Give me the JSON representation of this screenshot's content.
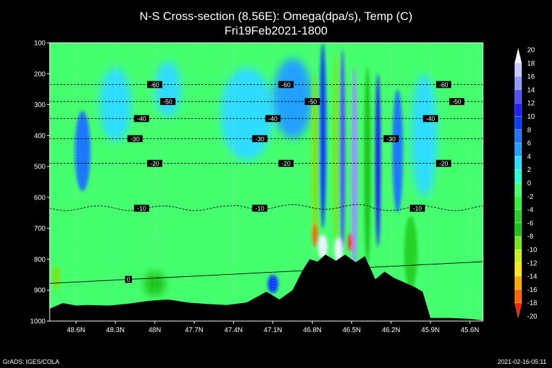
{
  "chart_data": {
    "type": "heatmap",
    "title": "N-S Cross-section (8.56E): Omega(dpa/s), Temp (C)",
    "subtitle": "Fri19Feb2021-1800",
    "xlabel": "",
    "ylabel": "",
    "x_ticks": [
      "48.6N",
      "48.3N",
      "48N",
      "47.7N",
      "47.4N",
      "47.1N",
      "46.8N",
      "46.5N",
      "46.2N",
      "45.9N",
      "45.6N"
    ],
    "x_tick_values": [
      48.6,
      48.3,
      48.0,
      47.7,
      47.4,
      47.1,
      46.8,
      46.5,
      46.2,
      45.9,
      45.6
    ],
    "xlim": [
      48.8,
      45.5
    ],
    "y_ticks": [
      "100",
      "200",
      "300",
      "400",
      "500",
      "600",
      "700",
      "800",
      "900",
      "1000"
    ],
    "y_tick_values": [
      100,
      200,
      300,
      400,
      500,
      600,
      700,
      800,
      900,
      1000
    ],
    "ylim": [
      100,
      1000
    ],
    "grid": true,
    "colorbar": {
      "levels": [
        "20",
        "18",
        "16",
        "14",
        "12",
        "10",
        "8",
        "6",
        "4",
        "2",
        "0",
        "-2",
        "-4",
        "-6",
        "-8",
        "-10",
        "-12",
        "-14",
        "-16",
        "-18",
        "-20"
      ],
      "colors": [
        "#f0f0ff",
        "#c8c8ff",
        "#9696ff",
        "#5050ff",
        "#1e1eff",
        "#0a3cff",
        "#1e78ff",
        "#23a0ff",
        "#2ddcff",
        "#28ffd2",
        "#46ff6e",
        "#32f03c",
        "#28d228",
        "#1ec31e",
        "#78e61e",
        "#c8f01e",
        "#ffe61e",
        "#ffaa00",
        "#ff6400",
        "#ff1e00"
      ]
    },
    "temperature_contours": [
      {
        "label": "-60",
        "p": 235,
        "label_lats": [
          48.0,
          47.0,
          45.8
        ]
      },
      {
        "label": "-50",
        "p": 290,
        "label_lats": [
          47.9,
          46.8,
          45.7
        ]
      },
      {
        "label": "-40",
        "p": 345,
        "label_lats": [
          48.1,
          47.1,
          45.9
        ]
      },
      {
        "label": "-30",
        "p": 410,
        "label_lats": [
          48.15,
          47.2,
          46.2
        ]
      },
      {
        "label": "-20",
        "p": 490,
        "label_lats": [
          48.0,
          47.0,
          45.8
        ]
      },
      {
        "label": "-10",
        "p": 635,
        "label_lats": [
          48.1,
          47.2,
          46.0
        ]
      },
      {
        "label": "0",
        "p": 860,
        "label_lats": [
          48.2
        ]
      }
    ],
    "omega_field": {
      "background": "#46ff6e",
      "blobs": [
        {
          "lat": 48.55,
          "p": 450,
          "dlat": 0.06,
          "dp": 130,
          "value": 6
        },
        {
          "lat": 48.3,
          "p": 300,
          "dlat": 0.12,
          "dp": 120,
          "value": 2
        },
        {
          "lat": 47.9,
          "p": 250,
          "dlat": 0.1,
          "dp": 90,
          "value": 2
        },
        {
          "lat": 47.3,
          "p": 330,
          "dlat": 0.2,
          "dp": 150,
          "value": 2
        },
        {
          "lat": 46.95,
          "p": 280,
          "dlat": 0.15,
          "dp": 130,
          "value": 4
        },
        {
          "lat": 46.78,
          "p": 480,
          "dlat": 0.03,
          "dp": 280,
          "value": -10
        },
        {
          "lat": 46.72,
          "p": 400,
          "dlat": 0.025,
          "dp": 300,
          "value": 8
        },
        {
          "lat": 46.62,
          "p": 450,
          "dlat": 0.025,
          "dp": 320,
          "value": -10
        },
        {
          "lat": 46.57,
          "p": 450,
          "dlat": 0.02,
          "dp": 330,
          "value": 12
        },
        {
          "lat": 46.48,
          "p": 520,
          "dlat": 0.025,
          "dp": 340,
          "value": 14
        },
        {
          "lat": 46.38,
          "p": 500,
          "dlat": 0.025,
          "dp": 320,
          "value": -8
        },
        {
          "lat": 46.3,
          "p": 480,
          "dlat": 0.02,
          "dp": 280,
          "value": 10
        },
        {
          "lat": 46.15,
          "p": 450,
          "dlat": 0.04,
          "dp": 200,
          "value": 6
        },
        {
          "lat": 45.95,
          "p": 400,
          "dlat": 0.1,
          "dp": 200,
          "value": 2
        },
        {
          "lat": 46.78,
          "p": 720,
          "dlat": 0.02,
          "dp": 40,
          "value": -18
        },
        {
          "lat": 46.51,
          "p": 745,
          "dlat": 0.015,
          "dp": 30,
          "value": -20
        },
        {
          "lat": 46.72,
          "p": 760,
          "dlat": 0.035,
          "dp": 40,
          "value": 20
        },
        {
          "lat": 46.6,
          "p": 770,
          "dlat": 0.03,
          "dp": 40,
          "value": 20
        },
        {
          "lat": 48.75,
          "p": 860,
          "dlat": 0.03,
          "dp": 40,
          "value": -10
        },
        {
          "lat": 48.0,
          "p": 880,
          "dlat": 0.08,
          "dp": 40,
          "value": -8
        },
        {
          "lat": 47.1,
          "p": 880,
          "dlat": 0.04,
          "dp": 30,
          "value": 8
        },
        {
          "lat": 46.05,
          "p": 780,
          "dlat": 0.05,
          "dp": 120,
          "value": -6
        }
      ]
    },
    "terrain_surface": [
      {
        "lat": 48.8,
        "p": 960
      },
      {
        "lat": 48.7,
        "p": 942
      },
      {
        "lat": 48.6,
        "p": 950
      },
      {
        "lat": 48.5,
        "p": 948
      },
      {
        "lat": 48.35,
        "p": 950
      },
      {
        "lat": 48.2,
        "p": 944
      },
      {
        "lat": 48.05,
        "p": 935
      },
      {
        "lat": 47.9,
        "p": 930
      },
      {
        "lat": 47.75,
        "p": 940
      },
      {
        "lat": 47.6,
        "p": 945
      },
      {
        "lat": 47.45,
        "p": 948
      },
      {
        "lat": 47.3,
        "p": 940
      },
      {
        "lat": 47.15,
        "p": 905
      },
      {
        "lat": 47.05,
        "p": 930
      },
      {
        "lat": 46.95,
        "p": 900
      },
      {
        "lat": 46.88,
        "p": 840
      },
      {
        "lat": 46.82,
        "p": 800
      },
      {
        "lat": 46.76,
        "p": 808
      },
      {
        "lat": 46.7,
        "p": 785
      },
      {
        "lat": 46.62,
        "p": 805
      },
      {
        "lat": 46.55,
        "p": 785
      },
      {
        "lat": 46.47,
        "p": 810
      },
      {
        "lat": 46.4,
        "p": 790
      },
      {
        "lat": 46.32,
        "p": 865
      },
      {
        "lat": 46.25,
        "p": 840
      },
      {
        "lat": 46.18,
        "p": 860
      },
      {
        "lat": 46.1,
        "p": 875
      },
      {
        "lat": 46.02,
        "p": 890
      },
      {
        "lat": 45.96,
        "p": 905
      },
      {
        "lat": 45.9,
        "p": 990
      },
      {
        "lat": 45.75,
        "p": 990
      },
      {
        "lat": 45.6,
        "p": 993
      },
      {
        "lat": 45.5,
        "p": 998
      }
    ],
    "credit": "GrADS: IGES/COLA",
    "timestamp": "2021-02-16-05:11"
  }
}
